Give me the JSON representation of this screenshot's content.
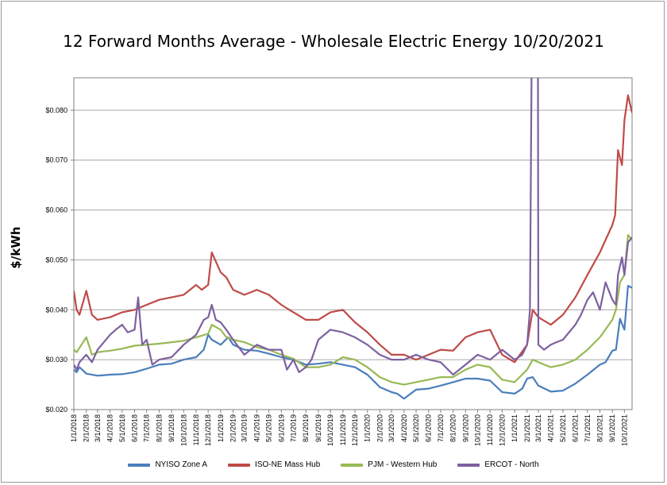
{
  "chart_data": {
    "type": "line",
    "title": "12 Forward Months Average - Wholesale Electric Energy 10/20/2021",
    "ylabel": "$/kWh",
    "xlabel": "",
    "ylim": [
      0.02,
      0.0865
    ],
    "yticks": [
      "$0.020",
      "$0.030",
      "$0.040",
      "$0.050",
      "$0.060",
      "$0.070",
      "$0.080"
    ],
    "ytick_values": [
      0.02,
      0.03,
      0.04,
      0.05,
      0.06,
      0.07,
      0.08
    ],
    "xlim": [
      "2018-01-01",
      "2021-10-20"
    ],
    "xtick_labels": [
      "1/1/2018",
      "2/1/2018",
      "3/1/2018",
      "4/1/2018",
      "5/1/2018",
      "6/1/2018",
      "7/1/2018",
      "8/1/2018",
      "9/1/2018",
      "10/1/2018",
      "11/1/2018",
      "12/1/2018",
      "1/1/2019",
      "2/1/2019",
      "3/1/2019",
      "4/1/2019",
      "5/1/2019",
      "6/1/2019",
      "7/1/2019",
      "8/1/2019",
      "9/1/2019",
      "10/1/2019",
      "11/1/2019",
      "12/1/2019",
      "1/1/2020",
      "2/1/2020",
      "3/1/2020",
      "4/1/2020",
      "5/1/2020",
      "6/1/2020",
      "7/1/2020",
      "8/1/2020",
      "9/1/2020",
      "10/1/2020",
      "11/1/2020",
      "12/1/2020",
      "1/1/2021",
      "2/1/2021",
      "3/1/2021",
      "4/1/2021",
      "5/1/2021",
      "6/1/2021",
      "7/1/2021",
      "8/1/2021",
      "9/1/2021",
      "10/1/2021"
    ],
    "grid": "horizontal",
    "legend_position": "bottom",
    "series": [
      {
        "name": "NYISO Zone A",
        "color": "#4a7ebb",
        "x": [
          "2018-01-01",
          "2018-01-08",
          "2018-01-15",
          "2018-02-01",
          "2018-03-01",
          "2018-04-01",
          "2018-05-01",
          "2018-06-01",
          "2018-07-01",
          "2018-08-01",
          "2018-09-01",
          "2018-10-01",
          "2018-11-01",
          "2018-11-20",
          "2018-12-01",
          "2018-12-10",
          "2019-01-01",
          "2019-01-20",
          "2019-02-01",
          "2019-03-01",
          "2019-04-01",
          "2019-05-01",
          "2019-06-01",
          "2019-07-01",
          "2019-08-01",
          "2019-09-01",
          "2019-10-01",
          "2019-11-01",
          "2019-12-01",
          "2020-01-01",
          "2020-02-01",
          "2020-03-01",
          "2020-03-15",
          "2020-04-01",
          "2020-05-01",
          "2020-06-01",
          "2020-07-01",
          "2020-08-01",
          "2020-09-01",
          "2020-10-01",
          "2020-11-01",
          "2020-12-01",
          "2021-01-01",
          "2021-01-20",
          "2021-02-01",
          "2021-02-15",
          "2021-03-01",
          "2021-04-01",
          "2021-05-01",
          "2021-06-01",
          "2021-07-01",
          "2021-08-01",
          "2021-08-15",
          "2021-09-01",
          "2021-09-10",
          "2021-09-20",
          "2021-10-01",
          "2021-10-10",
          "2021-10-20"
        ],
        "values": [
          0.028,
          0.0275,
          0.0285,
          0.0272,
          0.0268,
          0.027,
          0.0271,
          0.0275,
          0.0282,
          0.029,
          0.0292,
          0.03,
          0.0305,
          0.032,
          0.035,
          0.034,
          0.033,
          0.0345,
          0.033,
          0.032,
          0.0318,
          0.0312,
          0.0305,
          0.03,
          0.029,
          0.0292,
          0.0295,
          0.029,
          0.0285,
          0.027,
          0.0245,
          0.0235,
          0.0232,
          0.0222,
          0.024,
          0.0242,
          0.0248,
          0.0255,
          0.0262,
          0.0262,
          0.0258,
          0.0235,
          0.0232,
          0.0242,
          0.0262,
          0.0265,
          0.0248,
          0.0236,
          0.0238,
          0.0252,
          0.027,
          0.029,
          0.0295,
          0.0318,
          0.032,
          0.0382,
          0.036,
          0.0448,
          0.0444
        ]
      },
      {
        "name": "ISO-NE Mass Hub",
        "color": "#be4b48",
        "x": [
          "2018-01-01",
          "2018-01-08",
          "2018-01-15",
          "2018-02-01",
          "2018-02-15",
          "2018-03-01",
          "2018-04-01",
          "2018-05-01",
          "2018-06-01",
          "2018-07-01",
          "2018-08-01",
          "2018-09-01",
          "2018-10-01",
          "2018-11-01",
          "2018-11-15",
          "2018-12-01",
          "2018-12-10",
          "2019-01-01",
          "2019-01-15",
          "2019-02-01",
          "2019-03-01",
          "2019-04-01",
          "2019-05-01",
          "2019-06-01",
          "2019-07-01",
          "2019-08-01",
          "2019-09-01",
          "2019-10-01",
          "2019-11-01",
          "2019-12-01",
          "2020-01-01",
          "2020-02-01",
          "2020-03-01",
          "2020-04-01",
          "2020-05-01",
          "2020-06-01",
          "2020-07-01",
          "2020-08-01",
          "2020-09-01",
          "2020-10-01",
          "2020-11-01",
          "2020-12-01",
          "2021-01-01",
          "2021-02-01",
          "2021-02-15",
          "2021-03-01",
          "2021-04-01",
          "2021-05-01",
          "2021-06-01",
          "2021-07-01",
          "2021-08-01",
          "2021-09-01",
          "2021-09-08",
          "2021-09-15",
          "2021-09-25",
          "2021-10-01",
          "2021-10-10",
          "2021-10-20"
        ],
        "values": [
          0.0438,
          0.04,
          0.039,
          0.0438,
          0.039,
          0.038,
          0.0385,
          0.0395,
          0.04,
          0.041,
          0.042,
          0.0425,
          0.043,
          0.045,
          0.044,
          0.045,
          0.0515,
          0.0475,
          0.0465,
          0.044,
          0.043,
          0.044,
          0.043,
          0.041,
          0.0395,
          0.038,
          0.038,
          0.0395,
          0.04,
          0.0375,
          0.0355,
          0.033,
          0.031,
          0.031,
          0.03,
          0.031,
          0.032,
          0.0318,
          0.0345,
          0.0355,
          0.036,
          0.031,
          0.0295,
          0.033,
          0.04,
          0.0385,
          0.037,
          0.039,
          0.0425,
          0.047,
          0.0515,
          0.057,
          0.059,
          0.072,
          0.069,
          0.078,
          0.083,
          0.0795
        ]
      },
      {
        "name": "PJM - Western Hub",
        "color": "#98b954",
        "x": [
          "2018-01-01",
          "2018-01-08",
          "2018-01-20",
          "2018-02-01",
          "2018-02-15",
          "2018-03-01",
          "2018-04-01",
          "2018-05-01",
          "2018-06-01",
          "2018-07-01",
          "2018-08-01",
          "2018-09-01",
          "2018-10-01",
          "2018-11-01",
          "2018-12-01",
          "2018-12-10",
          "2019-01-01",
          "2019-01-15",
          "2019-02-01",
          "2019-03-01",
          "2019-04-01",
          "2019-05-01",
          "2019-06-01",
          "2019-07-01",
          "2019-08-01",
          "2019-09-01",
          "2019-10-01",
          "2019-11-01",
          "2019-12-01",
          "2020-01-01",
          "2020-02-01",
          "2020-03-01",
          "2020-04-01",
          "2020-05-01",
          "2020-06-01",
          "2020-07-01",
          "2020-08-01",
          "2020-09-01",
          "2020-10-01",
          "2020-11-01",
          "2020-12-01",
          "2021-01-01",
          "2021-02-01",
          "2021-02-15",
          "2021-03-01",
          "2021-04-01",
          "2021-05-01",
          "2021-06-01",
          "2021-07-01",
          "2021-08-01",
          "2021-09-01",
          "2021-09-10",
          "2021-09-20",
          "2021-10-01",
          "2021-10-10",
          "2021-10-20"
        ],
        "values": [
          0.032,
          0.0315,
          0.033,
          0.0345,
          0.031,
          0.0315,
          0.0318,
          0.0322,
          0.0328,
          0.033,
          0.0332,
          0.0335,
          0.0338,
          0.0345,
          0.0352,
          0.037,
          0.036,
          0.0345,
          0.034,
          0.0335,
          0.0325,
          0.032,
          0.031,
          0.0302,
          0.0285,
          0.0285,
          0.029,
          0.0305,
          0.03,
          0.0285,
          0.0265,
          0.0255,
          0.025,
          0.0255,
          0.026,
          0.0265,
          0.0265,
          0.028,
          0.029,
          0.0285,
          0.026,
          0.0255,
          0.028,
          0.03,
          0.0295,
          0.0285,
          0.029,
          0.03,
          0.032,
          0.0345,
          0.038,
          0.04,
          0.0455,
          0.047,
          0.055,
          0.054
        ]
      },
      {
        "name": "ERCOT - North",
        "color": "#7d60a0",
        "x": [
          "2018-01-01",
          "2018-01-08",
          "2018-01-15",
          "2018-02-01",
          "2018-02-15",
          "2018-03-01",
          "2018-04-01",
          "2018-04-15",
          "2018-05-01",
          "2018-05-15",
          "2018-06-01",
          "2018-06-10",
          "2018-06-20",
          "2018-07-01",
          "2018-07-15",
          "2018-08-01",
          "2018-09-01",
          "2018-10-01",
          "2018-11-01",
          "2018-11-20",
          "2018-12-01",
          "2018-12-10",
          "2018-12-20",
          "2019-01-01",
          "2019-01-15",
          "2019-02-01",
          "2019-03-01",
          "2019-04-01",
          "2019-05-01",
          "2019-06-01",
          "2019-06-15",
          "2019-07-01",
          "2019-07-15",
          "2019-08-01",
          "2019-08-15",
          "2019-09-01",
          "2019-10-01",
          "2019-11-01",
          "2019-12-01",
          "2020-01-01",
          "2020-02-01",
          "2020-03-01",
          "2020-04-01",
          "2020-05-01",
          "2020-06-01",
          "2020-07-01",
          "2020-08-01",
          "2020-09-01",
          "2020-10-01",
          "2020-11-01",
          "2020-12-01",
          "2021-01-01",
          "2021-01-20",
          "2021-02-01",
          "2021-02-08",
          "2021-02-12",
          "2021-02-22",
          "2021-02-28",
          "2021-03-01",
          "2021-03-15",
          "2021-04-01",
          "2021-04-15",
          "2021-05-01",
          "2021-06-01",
          "2021-06-15",
          "2021-07-01",
          "2021-07-15",
          "2021-08-01",
          "2021-08-15",
          "2021-09-01",
          "2021-09-10",
          "2021-09-15",
          "2021-09-25",
          "2021-10-01",
          "2021-10-10",
          "2021-10-20"
        ],
        "values": [
          0.029,
          0.028,
          0.0295,
          0.031,
          0.0295,
          0.032,
          0.035,
          0.036,
          0.037,
          0.0355,
          0.036,
          0.0425,
          0.033,
          0.034,
          0.029,
          0.03,
          0.0305,
          0.033,
          0.035,
          0.038,
          0.0385,
          0.041,
          0.038,
          0.0375,
          0.036,
          0.034,
          0.031,
          0.033,
          0.032,
          0.032,
          0.028,
          0.03,
          0.0275,
          0.0285,
          0.03,
          0.034,
          0.036,
          0.0355,
          0.0345,
          0.033,
          0.031,
          0.03,
          0.03,
          0.031,
          0.03,
          0.0295,
          0.027,
          0.029,
          0.031,
          0.03,
          0.032,
          0.03,
          0.031,
          0.033,
          0.04,
          0.087,
          0.087,
          0.087,
          0.033,
          0.032,
          0.033,
          0.0335,
          0.034,
          0.037,
          0.039,
          0.042,
          0.0435,
          0.04,
          0.0455,
          0.042,
          0.041,
          0.047,
          0.0505,
          0.047,
          0.0535,
          0.0545
        ]
      }
    ]
  }
}
